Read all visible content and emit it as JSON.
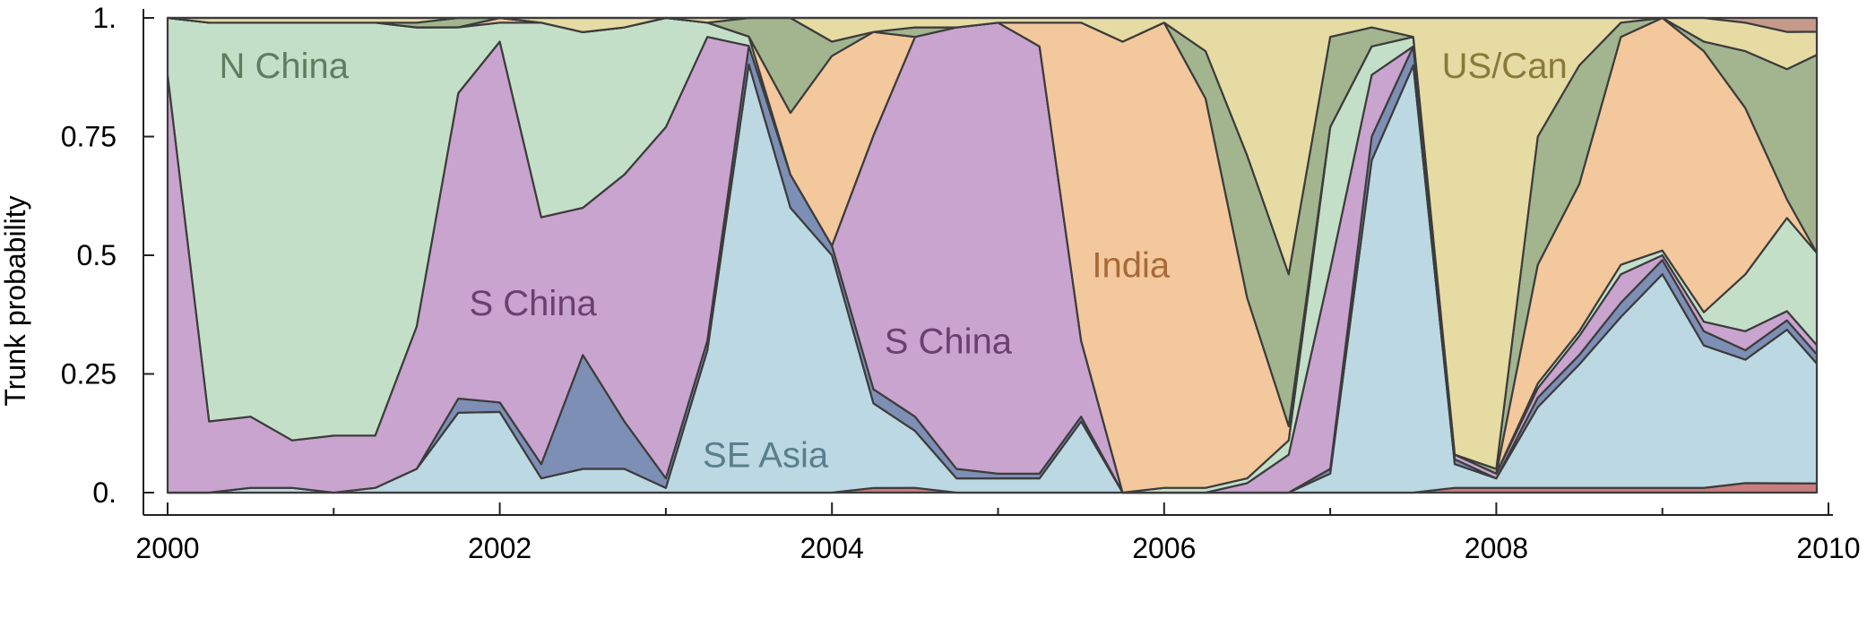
{
  "chart_data": {
    "type": "area",
    "stacked": true,
    "normalized": true,
    "title": "",
    "xlabel": "",
    "ylabel": "Trunk probability",
    "xlim": [
      2000,
      2010
    ],
    "ylim": [
      0,
      1
    ],
    "x_ticks": [
      2000,
      2002,
      2004,
      2006,
      2008,
      2010
    ],
    "x_tick_labels": [
      "2000",
      "2002",
      "2004",
      "2006",
      "2008",
      "2010"
    ],
    "x_minor_ticks": [
      2001,
      2003,
      2005,
      2007,
      2009
    ],
    "y_ticks": [
      0,
      0.25,
      0.5,
      0.75,
      1
    ],
    "y_tick_labels": [
      "0.",
      "0.25",
      "0.5",
      "0.75",
      "1."
    ],
    "legend": "none",
    "grid": false,
    "x": [
      2000.0,
      2000.25,
      2000.5,
      2000.75,
      2001.0,
      2001.25,
      2001.5,
      2001.75,
      2002.0,
      2002.25,
      2002.5,
      2002.75,
      2003.0,
      2003.25,
      2003.5,
      2003.75,
      2004.0,
      2004.25,
      2004.5,
      2004.75,
      2005.0,
      2005.25,
      2005.5,
      2005.75,
      2006.0,
      2006.25,
      2006.5,
      2006.75,
      2007.0,
      2007.25,
      2007.5,
      2007.75,
      2008.0,
      2008.25,
      2008.5,
      2008.75,
      2009.0,
      2009.25,
      2009.5,
      2009.75,
      2009.93
    ],
    "series": [
      {
        "key": "red",
        "color": "#c97d7d",
        "values": [
          0,
          0,
          0,
          0,
          0,
          0,
          0,
          0,
          0,
          0,
          0,
          0,
          0,
          0,
          0,
          0,
          0,
          0.01,
          0.01,
          0,
          0,
          0,
          0,
          0,
          0,
          0,
          0,
          0,
          0,
          0,
          0,
          0.01,
          0.01,
          0.01,
          0.01,
          0.01,
          0.01,
          0.01,
          0.02,
          0.02,
          0.02
        ]
      },
      {
        "key": "se_asia",
        "color": "#bcd8e2",
        "values": [
          0,
          0,
          0.01,
          0.01,
          0,
          0.01,
          0.05,
          0.17,
          0.17,
          0.03,
          0.05,
          0.05,
          0.01,
          0.3,
          0.92,
          0.6,
          0.5,
          0.18,
          0.12,
          0.03,
          0.03,
          0.03,
          0.15,
          0,
          0,
          0,
          0,
          0,
          0.04,
          0.7,
          0.9,
          0.05,
          0.02,
          0.17,
          0.26,
          0.36,
          0.45,
          0.3,
          0.26,
          0.33,
          0.26
        ]
      },
      {
        "key": "blue",
        "color": "#7e8fb5",
        "values": [
          0,
          0,
          0,
          0,
          0,
          0,
          0,
          0.03,
          0.02,
          0.03,
          0.24,
          0.1,
          0.02,
          0.02,
          0.04,
          0.07,
          0.02,
          0.03,
          0.03,
          0.02,
          0.01,
          0.01,
          0.01,
          0,
          0,
          0,
          0,
          0,
          0.01,
          0.05,
          0.04,
          0.01,
          0,
          0.02,
          0.02,
          0.03,
          0.03,
          0.03,
          0.02,
          0.02,
          0.02
        ]
      },
      {
        "key": "s_china",
        "color": "#c9a4cf",
        "values": [
          0.88,
          0.15,
          0.15,
          0.1,
          0.12,
          0.11,
          0.3,
          0.65,
          0.76,
          0.52,
          0.31,
          0.52,
          0.74,
          0.64,
          0,
          0,
          0,
          0.54,
          0.8,
          0.93,
          0.95,
          0.9,
          0.16,
          0,
          0,
          0,
          0.02,
          0.08,
          0.42,
          0.13,
          0,
          0.01,
          0.01,
          0.02,
          0.04,
          0.06,
          0.01,
          0.02,
          0.04,
          0.02,
          0.02
        ]
      },
      {
        "key": "n_china",
        "color": "#c4dfc8",
        "values": [
          0.12,
          0.84,
          0.83,
          0.88,
          0.87,
          0.87,
          0.63,
          0.14,
          0.04,
          0.41,
          0.37,
          0.31,
          0.23,
          0.03,
          0.02,
          0,
          0,
          0,
          0,
          0,
          0,
          0,
          0,
          0,
          0.01,
          0.01,
          0.01,
          0.03,
          0.3,
          0.06,
          0.02,
          0,
          0,
          0.01,
          0.01,
          0.02,
          0.01,
          0.02,
          0.12,
          0.2,
          0.2
        ]
      },
      {
        "key": "india",
        "color": "#f3c89c",
        "values": [
          0,
          0,
          0,
          0,
          0,
          0,
          0,
          0,
          0.01,
          0,
          0,
          0,
          0,
          0,
          0,
          0.13,
          0.4,
          0.22,
          0,
          0,
          0,
          0.05,
          0.67,
          0.95,
          0.98,
          0.82,
          0.38,
          0.03,
          0,
          0,
          0,
          0,
          0,
          0.25,
          0.31,
          0.48,
          0.49,
          0.55,
          0.35,
          0.04,
          0
        ]
      },
      {
        "key": "green",
        "color": "#a2b58f",
        "values": [
          0,
          0,
          0,
          0,
          0,
          0,
          0.01,
          0.02,
          0,
          0,
          0,
          0,
          0,
          0,
          0.04,
          0.2,
          0.03,
          0,
          0.02,
          0,
          0,
          0,
          0,
          0,
          0,
          0.1,
          0.3,
          0.32,
          0.19,
          0.04,
          0,
          0,
          0.01,
          0.27,
          0.25,
          0.03,
          0,
          0.02,
          0.12,
          0.28,
          0.43
        ]
      },
      {
        "key": "us_can",
        "color": "#e6dba3",
        "values": [
          0,
          0.01,
          0.01,
          0.01,
          0.01,
          0.01,
          0.01,
          0,
          0,
          0.01,
          0.03,
          0.02,
          0,
          0.01,
          0,
          0,
          0.05,
          0.03,
          0.02,
          0.02,
          0.01,
          0.01,
          0.01,
          0.05,
          0.01,
          0.07,
          0.29,
          0.54,
          0.04,
          0.02,
          0.04,
          0.92,
          0.95,
          0.25,
          0.1,
          0.01,
          0,
          0.05,
          0.06,
          0.08,
          0.05
        ]
      },
      {
        "key": "brown",
        "color": "#c69a8a",
        "values": [
          0,
          0,
          0,
          0,
          0,
          0,
          0,
          0,
          0,
          0,
          0,
          0,
          0,
          0,
          0,
          0,
          0,
          0,
          0,
          0,
          0,
          0,
          0,
          0,
          0,
          0,
          0,
          0,
          0,
          0,
          0,
          0,
          0,
          0,
          0,
          0,
          0,
          0,
          0.01,
          0.03,
          0.03
        ]
      }
    ],
    "annotations": [
      {
        "text": "N China",
        "x": 2000.7,
        "y": 0.9,
        "color": "#5f7e5f"
      },
      {
        "text": "S China",
        "x": 2002.2,
        "y": 0.4,
        "color": "#6b3f6f"
      },
      {
        "text": "S China",
        "x": 2004.7,
        "y": 0.32,
        "color": "#6b3f6f"
      },
      {
        "text": "SE Asia",
        "x": 2003.6,
        "y": 0.08,
        "color": "#587f8c"
      },
      {
        "text": "India",
        "x": 2005.8,
        "y": 0.48,
        "color": "#a76a36"
      },
      {
        "text": "US/Can",
        "x": 2008.05,
        "y": 0.9,
        "color": "#8a7a3a"
      }
    ]
  }
}
